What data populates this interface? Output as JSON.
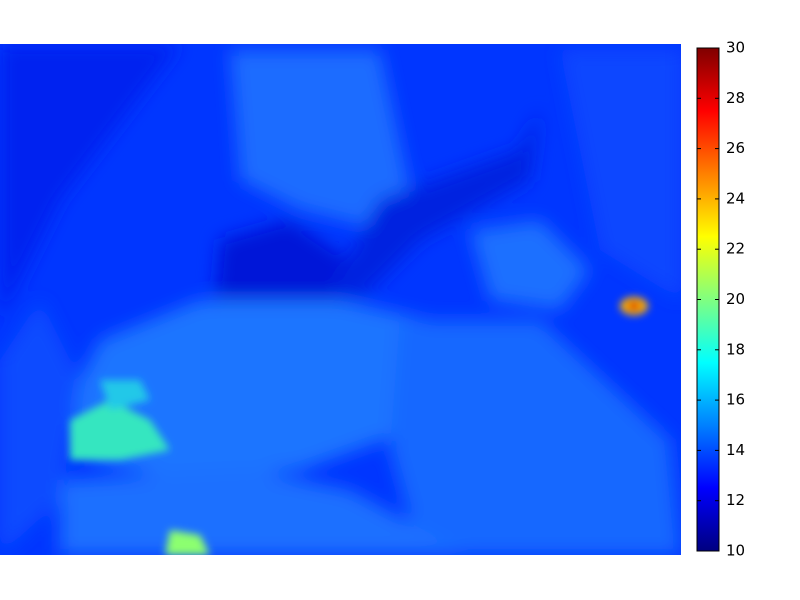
{
  "chart_data": {
    "type": "heatmap",
    "colormap": "jet",
    "colorbar": {
      "lim": [
        10,
        30
      ],
      "ticks": [
        10,
        12,
        14,
        16,
        18,
        20,
        22,
        24,
        26,
        28,
        30
      ]
    }
  }
}
